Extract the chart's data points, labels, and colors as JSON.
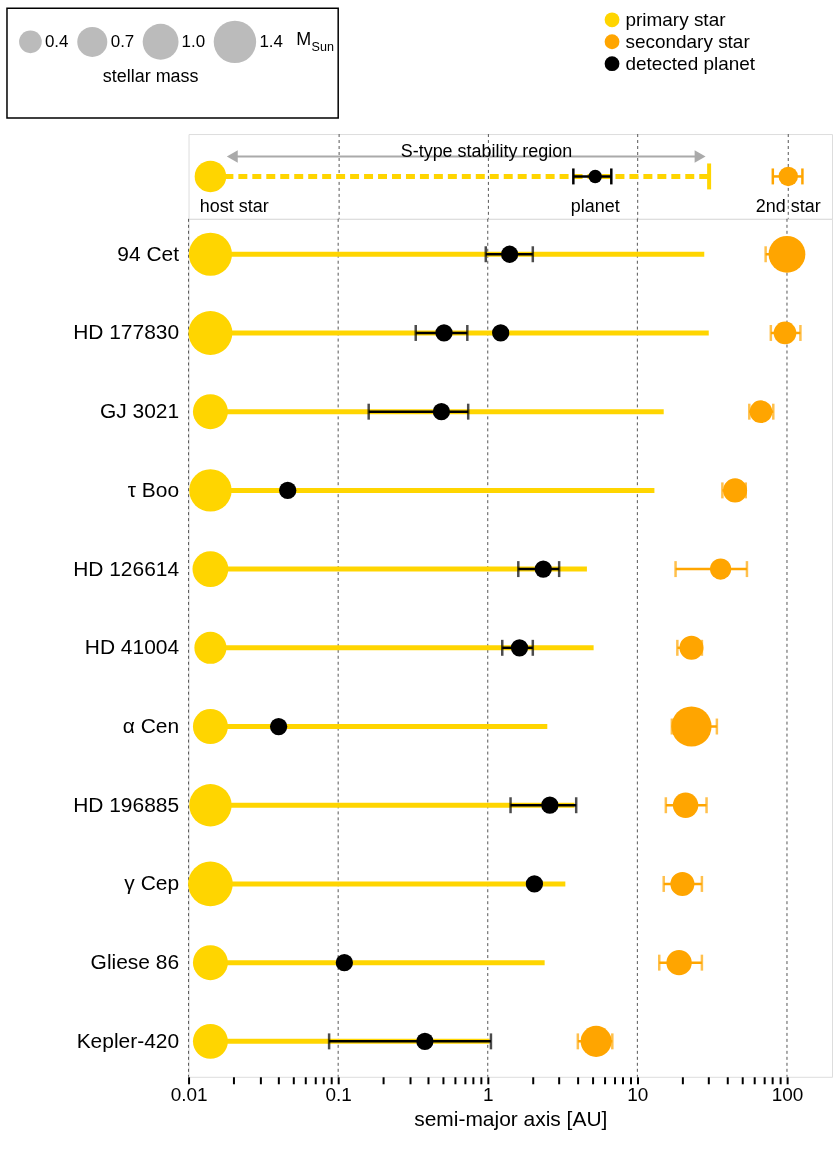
{
  "chart_data": [
    {
      "type": "other",
      "annotations": [
        "S-type stability region",
        "host star",
        "planet",
        "2nd star"
      ]
    },
    {
      "type": "bubble",
      "orientation": "horizontal",
      "categories": [
        "94 Cet",
        "HD 177830",
        "GJ 3021",
        "τ Boo",
        "HD 126614",
        "HD 41004",
        "α Cen",
        "HD 196885",
        "γ Cep",
        "Gliese 86",
        "Kepler-420"
      ],
      "log": "x",
      "xlim": [
        0.01,
        200
      ],
      "xlabel": "semi-major axis [AU]",
      "grid": "x",
      "legend": "top right",
      "legend_title": "stellar mass",
      "size_legend": [
        0.4,
        0.7,
        {
          "value": 1,
          "label": "1.0"
        },
        1.4
      ],
      "annotations": [
        "M$_{Sun}$"
      ],
      "xticks": [
        0.01,
        {
          "value": 0.02,
          "label": null
        },
        {
          "value": 0.03,
          "label": null
        },
        {
          "value": 0.04,
          "label": null
        },
        {
          "value": 0.05,
          "label": null
        },
        {
          "value": 0.06,
          "label": null
        },
        {
          "value": 0.07,
          "label": null
        },
        {
          "value": 0.08,
          "label": null
        },
        {
          "value": 0.09,
          "label": null
        },
        0.1,
        {
          "value": 0.2,
          "label": null
        },
        {
          "value": 0.3,
          "label": null
        },
        {
          "value": 0.4,
          "label": null
        },
        {
          "value": 0.5,
          "label": null
        },
        {
          "value": 0.6,
          "label": null
        },
        {
          "value": 0.7,
          "label": null
        },
        {
          "value": 0.8,
          "label": null
        },
        {
          "value": 0.9,
          "label": null
        },
        1,
        {
          "value": 2,
          "label": null
        },
        {
          "value": 3,
          "label": null
        },
        {
          "value": 4,
          "label": null
        },
        {
          "value": 5,
          "label": null
        },
        {
          "value": 6,
          "label": null
        },
        {
          "value": 7,
          "label": null
        },
        {
          "value": 8,
          "label": null
        },
        {
          "value": 9,
          "label": null
        },
        10,
        {
          "value": 20,
          "label": null
        },
        {
          "value": 30,
          "label": null
        },
        {
          "value": 40,
          "label": null
        },
        {
          "value": 50,
          "label": null
        },
        {
          "value": 60,
          "label": null
        },
        {
          "value": 70,
          "label": null
        },
        {
          "value": 80,
          "label": null
        },
        {
          "value": 90,
          "label": null
        },
        100
      ],
      "series": [
        {
          "type": "bar",
          "color": "#ffd500",
          "base": [
            0.014,
            0.014,
            0.014,
            0.014,
            0.014,
            0.014,
            0.014,
            0.014,
            0.014,
            0.014,
            0.014
          ],
          "values": [
            27.986,
            29.986,
            14.986,
            12.986,
            4.586,
            5.086,
            2.486,
            3.786,
            3.286,
            2.386,
            1.016
          ]
        },
        {
          "name": "primary star",
          "color": "#ffd500",
          "values": [
            0.014,
            0.014,
            0.014,
            0.014,
            0.014,
            0.014,
            0.014,
            0.014,
            0.014,
            0.014,
            0.014
          ],
          "sizes": [
            1.45,
            1.5,
            0.95,
            1.4,
            1.0,
            0.8,
            0.95,
            1.4,
            1.55,
            0.95,
            0.95
          ]
        },
        {
          "name": "secondary star",
          "color": "#ffa500",
          "values": [
            100,
            97,
            67,
            45,
            36,
            23,
            23,
            21,
            20,
            19,
            5.3
          ],
          "errors": [
            [
              72,
              100
            ],
            [
              78,
              123
            ],
            [
              56,
              81
            ],
            [
              37,
              53
            ],
            [
              18,
              54
            ],
            [
              18.5,
              27
            ],
            [
              17,
              34
            ],
            [
              15.5,
              29
            ],
            [
              15,
              27
            ],
            [
              14,
              27
            ],
            [
              4.0,
              6.8
            ]
          ],
          "sizes": [
            1.05,
            0.4,
            0.4,
            0.45,
            0.35,
            0.45,
            1.25,
            0.5,
            0.45,
            0.5,
            0.75
          ]
        },
        {
          "type": "scatter",
          "name": "detected planet",
          "color": "#000000",
          "values": [
            1.4,
            0.51,
            0.49,
            0.046,
            2.35,
            1.63,
            0.04,
            2.6,
            2.05,
            0.11,
            0.38
          ],
          "errors": [
            [
              0.97,
              2.0
            ],
            [
              0.33,
              0.73
            ],
            [
              0.16,
              0.74
            ],
            null,
            [
              1.6,
              3.0
            ],
            [
              1.25,
              2.0
            ],
            null,
            [
              1.42,
              3.9
            ],
            null,
            null,
            [
              0.087,
              1.05
            ]
          ]
        },
        {
          "type": "scatter",
          "color": "#000000",
          "values": [
            null,
            1.22,
            null,
            null,
            null,
            null,
            null,
            null,
            null,
            null,
            null
          ]
        }
      ]
    }
  ]
}
